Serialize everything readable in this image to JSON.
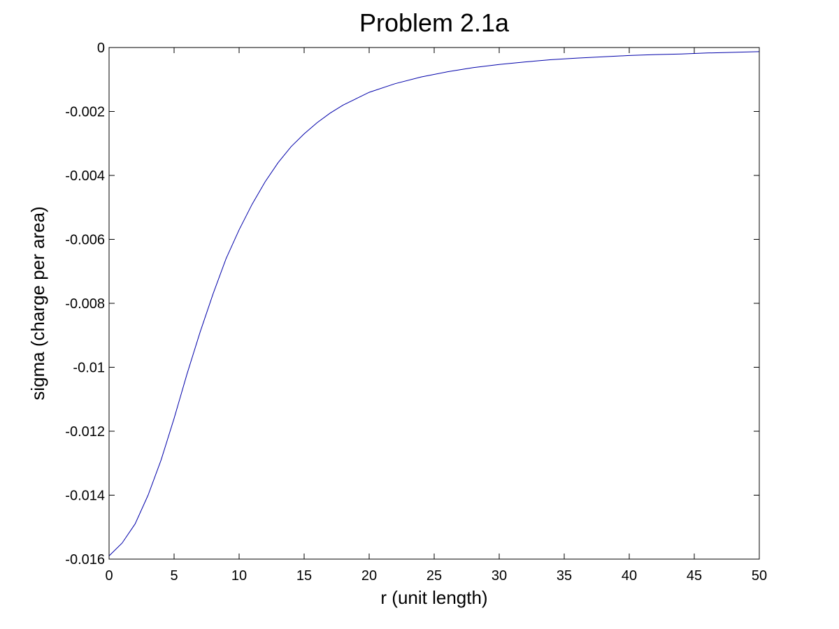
{
  "chart_data": {
    "type": "line",
    "title": "Problem 2.1a",
    "xlabel": "r (unit length)",
    "ylabel": "sigma (charge per area)",
    "xlim": [
      0,
      50
    ],
    "ylim": [
      -0.016,
      0
    ],
    "x_ticks": [
      0,
      5,
      10,
      15,
      20,
      25,
      30,
      35,
      40,
      45,
      50
    ],
    "x_tick_labels": [
      "0",
      "5",
      "10",
      "15",
      "20",
      "25",
      "30",
      "35",
      "40",
      "45",
      "50"
    ],
    "y_ticks": [
      0,
      -0.002,
      -0.004,
      -0.006,
      -0.008,
      -0.01,
      -0.012,
      -0.014,
      -0.016
    ],
    "y_tick_labels": [
      "0",
      "-0.002",
      "-0.004",
      "-0.006",
      "-0.008",
      "-0.01",
      "-0.012",
      "-0.014",
      "-0.016"
    ],
    "grid": false,
    "series": [
      {
        "color": "#0000aa",
        "x": [
          0,
          1,
          2,
          3,
          4,
          5,
          6,
          7,
          8,
          9,
          10,
          11,
          12,
          13,
          14,
          15,
          16,
          17,
          18,
          19,
          20,
          22,
          24,
          26,
          28,
          30,
          32,
          34,
          36,
          38,
          40,
          42,
          44,
          46,
          48,
          50
        ],
        "y": [
          -0.0159,
          -0.0155,
          -0.0149,
          -0.014,
          -0.0129,
          -0.0116,
          -0.0102,
          -0.0089,
          -0.0077,
          -0.0066,
          -0.0057,
          -0.0049,
          -0.0042,
          -0.0036,
          -0.0031,
          -0.0027,
          -0.00235,
          -0.00205,
          -0.0018,
          -0.0016,
          -0.0014,
          -0.00113,
          -0.00092,
          -0.00076,
          -0.00063,
          -0.00053,
          -0.00045,
          -0.00038,
          -0.00033,
          -0.00029,
          -0.00025,
          -0.00022,
          -0.0002,
          -0.00017,
          -0.00015,
          -0.00013
        ]
      }
    ]
  }
}
